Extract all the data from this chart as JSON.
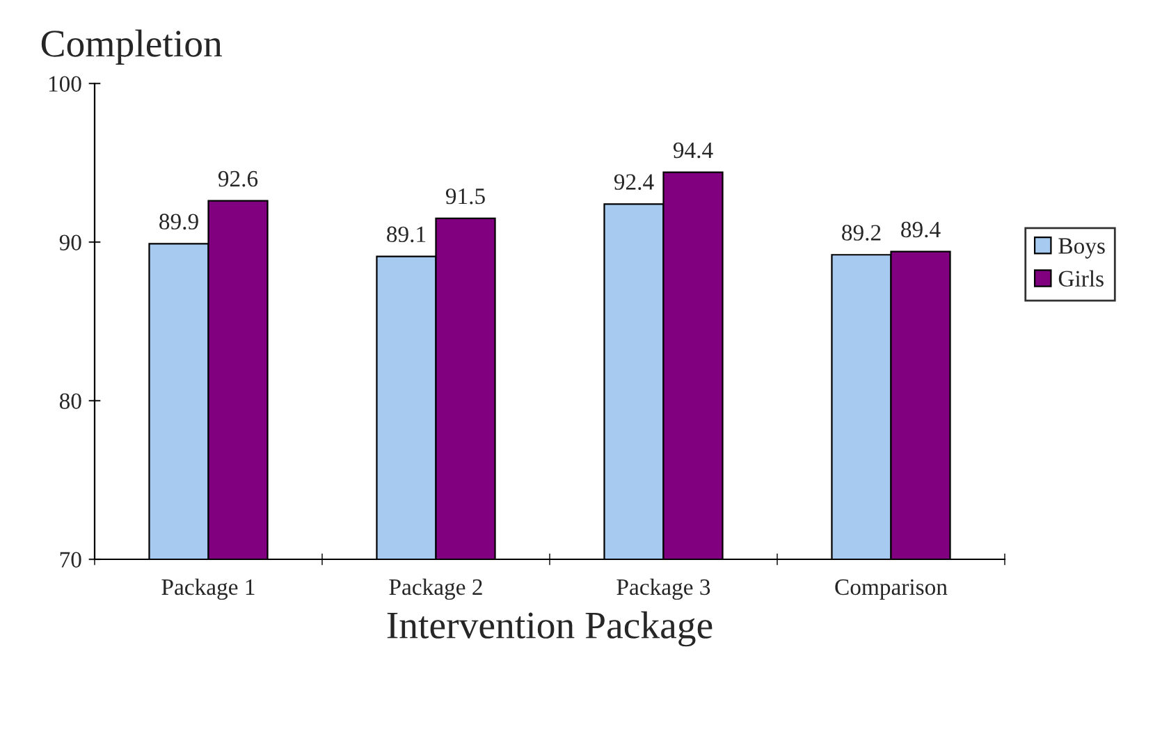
{
  "chart_data": {
    "type": "bar",
    "title": "Completion",
    "xlabel": "Intervention Package",
    "categories": [
      "Package 1",
      "Package 2",
      "Package 3",
      "Comparison"
    ],
    "series": [
      {
        "name": "Boys",
        "color": "#a6caf0",
        "values": [
          89.9,
          89.1,
          92.4,
          89.2
        ]
      },
      {
        "name": "Girls",
        "color": "#800080",
        "values": [
          92.6,
          91.5,
          94.4,
          89.4
        ]
      }
    ],
    "ylim": [
      70,
      100
    ],
    "yticks": [
      70,
      80,
      90,
      100
    ],
    "grid": false,
    "legend": "right",
    "data_labels": true
  }
}
